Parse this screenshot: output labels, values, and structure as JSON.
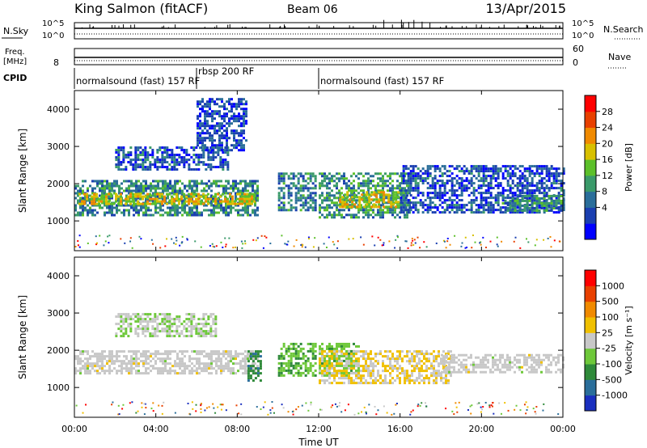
{
  "header": {
    "station": "King Salmon (fitACF)",
    "beam": "Beam 06",
    "date": "13/Apr/2015"
  },
  "noise_panel": {
    "left_label": "N.Sky",
    "right_label": "N.Search",
    "ticks": [
      "10^5",
      "10^0"
    ]
  },
  "freq_panel": {
    "left_label": "Freq.",
    "left_unit": "[MHz]",
    "left_ticks": [
      "8"
    ],
    "right_label": "Nave",
    "right_ticks": [
      "60",
      "0"
    ]
  },
  "cpid": {
    "label": "CPID",
    "segments": [
      {
        "name": "normalsound (fast) 157 RF",
        "start_hour": 0,
        "end_hour": 6.0
      },
      {
        "name": "rbsp 200 RF",
        "start_hour": 6.0,
        "end_hour": 12.0
      },
      {
        "name": "normalsound (fast) 157 RF",
        "start_hour": 12.0,
        "end_hour": 24.0
      }
    ]
  },
  "x_axis": {
    "label": "Time UT",
    "ticks": [
      "00:00",
      "04:00",
      "08:00",
      "12:00",
      "16:00",
      "20:00",
      "00:00"
    ]
  },
  "power_colorbar": {
    "label": "Power [dB]",
    "ticks": [
      "28",
      "24",
      "20",
      "16",
      "12",
      "8",
      "4"
    ],
    "colors": [
      "#0000ff",
      "#1a3fb0",
      "#2a6e9a",
      "#3a9a6a",
      "#5cc02a",
      "#d8c000",
      "#f08a00",
      "#e84000",
      "#ff0000"
    ]
  },
  "velocity_colorbar": {
    "label": "Velocity [m s^-1]",
    "ticks": [
      "1000",
      "500",
      "100",
      "25",
      "-25",
      "-100",
      "-500",
      "-1000"
    ],
    "colors": [
      "#1a2fbf",
      "#2a6e9a",
      "#2f8a3a",
      "#6ec83a",
      "#c8c8c8",
      "#f0c000",
      "#f08a00",
      "#e84000",
      "#ff0000"
    ]
  },
  "chart_data": [
    {
      "type": "heatmap",
      "title": "Power",
      "xlabel": "Time UT",
      "ylabel": "Slant Range [km]",
      "xlim": [
        0,
        24
      ],
      "ylim": [
        200,
        4500
      ],
      "yticks": [
        "4000",
        "3000",
        "2000",
        "1000"
      ],
      "colorbar": "Power [dB]",
      "clim": [
        0,
        30
      ],
      "echo_bands": [
        {
          "t_start": 0.0,
          "t_end": 9.0,
          "range_start_km": 1150,
          "range_end_km": 2100,
          "power_db": 10
        },
        {
          "t_start": 0.2,
          "t_end": 8.8,
          "range_start_km": 1450,
          "range_end_km": 1750,
          "power_db": 18
        },
        {
          "t_start": 2.0,
          "t_end": 7.5,
          "range_start_km": 2400,
          "range_end_km": 3000,
          "power_db": 6
        },
        {
          "t_start": 6.0,
          "t_end": 8.5,
          "range_start_km": 2900,
          "range_end_km": 4300,
          "power_db": 5
        },
        {
          "t_start": 10.0,
          "t_end": 11.9,
          "range_start_km": 1300,
          "range_end_km": 2300,
          "power_db": 9
        },
        {
          "t_start": 12.0,
          "t_end": 16.5,
          "range_start_km": 1100,
          "range_end_km": 2300,
          "power_db": 11
        },
        {
          "t_start": 13.0,
          "t_end": 16.0,
          "range_start_km": 1400,
          "range_end_km": 1800,
          "power_db": 18
        },
        {
          "t_start": 16.0,
          "t_end": 24.0,
          "range_start_km": 1200,
          "range_end_km": 2500,
          "power_db": 6
        },
        {
          "t_start": 21.0,
          "t_end": 24.0,
          "range_start_km": 1300,
          "range_end_km": 1700,
          "power_db": 10
        }
      ]
    },
    {
      "type": "heatmap",
      "title": "Velocity",
      "xlabel": "Time UT",
      "ylabel": "Slant Range [km]",
      "xlim": [
        0,
        24
      ],
      "ylim": [
        200,
        4500
      ],
      "yticks": [
        "4000",
        "3000",
        "2000",
        "1000"
      ],
      "colorbar": "Velocity [m s^-1]",
      "clim": [
        -1000,
        1000
      ],
      "echo_bands": [
        {
          "t_start": 0.0,
          "t_end": 9.0,
          "range_start_km": 1350,
          "range_end_km": 2000,
          "velocity": 0
        },
        {
          "t_start": 2.0,
          "t_end": 7.0,
          "range_start_km": 2400,
          "range_end_km": 3000,
          "velocity": -80
        },
        {
          "t_start": 8.5,
          "t_end": 9.2,
          "range_start_km": 1200,
          "range_end_km": 2000,
          "velocity": -500
        },
        {
          "t_start": 10.0,
          "t_end": 11.8,
          "range_start_km": 1300,
          "range_end_km": 2200,
          "velocity": -300
        },
        {
          "t_start": 12.0,
          "t_end": 14.0,
          "range_start_km": 1300,
          "range_end_km": 2200,
          "velocity": -250
        },
        {
          "t_start": 12.0,
          "t_end": 18.5,
          "range_start_km": 1150,
          "range_end_km": 2000,
          "velocity": 120
        },
        {
          "t_start": 18.0,
          "t_end": 24.0,
          "range_start_km": 1400,
          "range_end_km": 1900,
          "velocity": 0
        }
      ]
    }
  ]
}
